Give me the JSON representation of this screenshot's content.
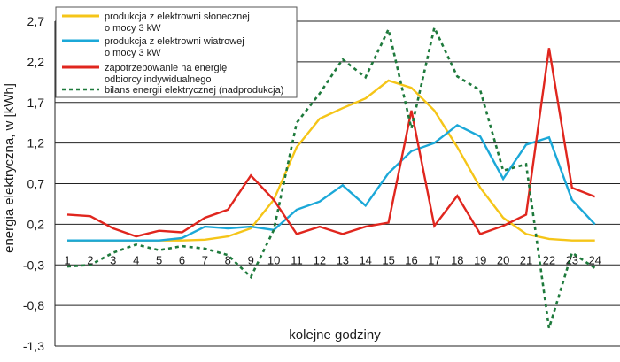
{
  "chart_data": {
    "type": "line",
    "ylabel": "energia elektryczna, w [kWh]",
    "xlabel": "kolejne godziny",
    "legend_position": "top-left",
    "grid": true,
    "ylim": [
      -1.3,
      2.7
    ],
    "yticks": [
      "2,7",
      "2,2",
      "1,7",
      "1,2",
      "0,7",
      "0,2",
      "-0,3",
      "-0,8",
      "-1,3"
    ],
    "ytick_values": [
      2.7,
      2.2,
      1.7,
      1.2,
      0.7,
      0.2,
      -0.3,
      -0.8,
      -1.3
    ],
    "xticks": [
      "1",
      "2",
      "3",
      "4",
      "5",
      "6",
      "7",
      "8",
      "9",
      "10",
      "11",
      "12",
      "13",
      "14",
      "15",
      "16",
      "17",
      "18",
      "19",
      "20",
      "21",
      "22",
      "23",
      "24"
    ],
    "x": [
      1,
      2,
      3,
      4,
      5,
      6,
      7,
      8,
      9,
      10,
      11,
      12,
      13,
      14,
      15,
      16,
      17,
      18,
      19,
      20,
      21,
      22,
      23,
      24
    ],
    "series": [
      {
        "name": "produkcja z elektrowni słonecznej o mocy 3 kW",
        "legend_lines": [
          "produkcja z elektrowni słonecznej",
          "o mocy 3 kW"
        ],
        "color": "#f5c518",
        "style": "solid",
        "values": [
          0,
          0,
          0,
          0,
          0,
          0,
          0.01,
          0.05,
          0.15,
          0.5,
          1.15,
          1.5,
          1.63,
          1.75,
          1.97,
          1.88,
          1.6,
          1.15,
          0.65,
          0.28,
          0.08,
          0.02,
          0.0,
          0.0
        ]
      },
      {
        "name": "produkcja z elektrowni wiatrowej o mocy 3 kW",
        "legend_lines": [
          "produkcja z elektrowni wiatrowej",
          "o mocy 3 kW"
        ],
        "color": "#1ba8d8",
        "style": "solid",
        "values": [
          0,
          0,
          0,
          0,
          0,
          0.03,
          0.17,
          0.15,
          0.17,
          0.13,
          0.38,
          0.48,
          0.68,
          0.43,
          0.83,
          1.1,
          1.2,
          1.42,
          1.28,
          0.76,
          1.18,
          1.27,
          0.5,
          0.2
        ]
      },
      {
        "name": "zapotrzebowanie na energię odbiorcy indywidualnego",
        "legend_lines": [
          "zapotrzebowanie na energię",
          "odbiorcy indywidualnego"
        ],
        "color": "#e0261e",
        "style": "solid",
        "values": [
          0.32,
          0.3,
          0.15,
          0.05,
          0.12,
          0.1,
          0.28,
          0.38,
          0.8,
          0.5,
          0.08,
          0.17,
          0.08,
          0.17,
          0.22,
          1.6,
          0.18,
          0.55,
          0.08,
          0.18,
          0.32,
          2.37,
          0.65,
          0.54
        ]
      },
      {
        "name": "bilans energii elektrycznej (nadprodukcja)",
        "legend_lines": [
          "bilans energii elektrycznej (nadprodukcja)"
        ],
        "color": "#1e7a3c",
        "style": "dotted",
        "values": [
          -0.32,
          -0.3,
          -0.15,
          -0.05,
          -0.12,
          -0.07,
          -0.1,
          -0.18,
          -0.45,
          0.13,
          1.45,
          1.81,
          2.23,
          2.01,
          2.6,
          1.38,
          2.62,
          2.02,
          1.85,
          0.86,
          0.94,
          -1.08,
          -0.15,
          -0.34
        ]
      }
    ]
  }
}
